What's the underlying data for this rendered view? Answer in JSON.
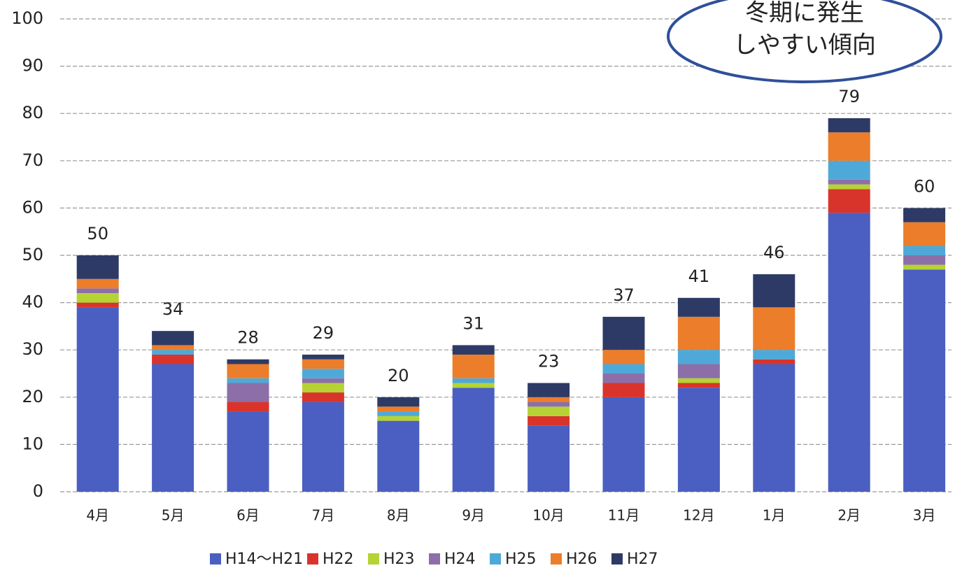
{
  "chart_data": {
    "type": "stacked_bar",
    "categories": [
      "4月",
      "5月",
      "6月",
      "7月",
      "8月",
      "9月",
      "10月",
      "11月",
      "12月",
      "1月",
      "2月",
      "3月"
    ],
    "series": [
      {
        "name": "H14～H21",
        "color": "#4a5fc1",
        "values": [
          39,
          27,
          17,
          19,
          15,
          22,
          14,
          20,
          22,
          27,
          59,
          47
        ]
      },
      {
        "name": "H22",
        "color": "#d9342b",
        "values": [
          1,
          2,
          2,
          2,
          0,
          0,
          2,
          3,
          1,
          1,
          5,
          0
        ]
      },
      {
        "name": "H23",
        "color": "#b5d334",
        "values": [
          2,
          0,
          0,
          2,
          1,
          1,
          2,
          0,
          1,
          0,
          1,
          1
        ]
      },
      {
        "name": "H24",
        "color": "#8c6fa8",
        "values": [
          1,
          0,
          4,
          1,
          0,
          0,
          1,
          2,
          3,
          0,
          1,
          2
        ]
      },
      {
        "name": "H25",
        "color": "#4fa9d8",
        "values": [
          0,
          1,
          1,
          2,
          1,
          1,
          0,
          2,
          3,
          2,
          4,
          2
        ]
      },
      {
        "name": "H26",
        "color": "#ec7d2a",
        "values": [
          2,
          1,
          3,
          2,
          1,
          5,
          1,
          3,
          7,
          9,
          6,
          5
        ]
      },
      {
        "name": "H27",
        "color": "#2e3a66",
        "values": [
          5,
          3,
          1,
          1,
          2,
          2,
          3,
          7,
          4,
          7,
          3,
          3
        ]
      }
    ],
    "totals": [
      50,
      34,
      28,
      29,
      20,
      31,
      23,
      37,
      41,
      46,
      79,
      60
    ],
    "annotation": [
      "冬期に発生",
      "しやすい傾向"
    ],
    "ylim": [
      0,
      100
    ],
    "yticks": [
      0,
      10,
      20,
      30,
      40,
      50,
      60,
      70,
      80,
      90,
      100
    ],
    "grid": true
  }
}
